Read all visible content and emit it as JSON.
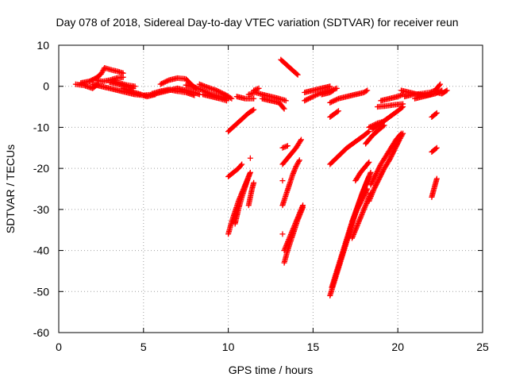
{
  "chart_data": {
    "type": "scatter",
    "title": "Day 078 of 2018, Sidereal Day-to-day VTEC variation (SDTVAR) for receiver reun",
    "xlabel": "GPS time / hours",
    "ylabel": "SDTVAR / TECUs",
    "xlim": [
      0,
      25
    ],
    "ylim": [
      -60,
      10
    ],
    "xticks": [
      0,
      5,
      10,
      15,
      20,
      25
    ],
    "yticks": [
      -60,
      -50,
      -40,
      -30,
      -20,
      -10,
      0,
      10
    ],
    "grid": true,
    "legend": "none",
    "marker": "plus",
    "color": "#ff0000",
    "segments": [
      [
        [
          1.0,
          0.5
        ],
        [
          1.5,
          0.2
        ],
        [
          2.0,
          -0.5
        ],
        [
          2.3,
          0.5
        ]
      ],
      [
        [
          1.3,
          0.8
        ],
        [
          1.8,
          1.2
        ],
        [
          2.2,
          2.0
        ],
        [
          2.5,
          3.0
        ],
        [
          2.7,
          4.5
        ],
        [
          3.1,
          4.0
        ],
        [
          3.5,
          3.6
        ],
        [
          3.8,
          3.2
        ]
      ],
      [
        [
          2.2,
          1.5
        ],
        [
          2.6,
          1.2
        ],
        [
          3.0,
          1.5
        ],
        [
          3.4,
          2.0
        ],
        [
          3.8,
          2.2
        ]
      ],
      [
        [
          2.0,
          0.5
        ],
        [
          2.5,
          0.0
        ],
        [
          3.0,
          -0.5
        ],
        [
          3.5,
          -1.0
        ],
        [
          4.0,
          -1.5
        ],
        [
          4.5,
          -2.0
        ],
        [
          5.0,
          -2.2
        ],
        [
          5.5,
          -2.0
        ],
        [
          6.0,
          -1.5
        ],
        [
          6.5,
          -1.0
        ],
        [
          7.0,
          -0.5
        ],
        [
          7.5,
          -1.0
        ],
        [
          8.0,
          -1.5
        ],
        [
          8.3,
          -2.0
        ]
      ],
      [
        [
          3.0,
          1.0
        ],
        [
          3.5,
          0.5
        ],
        [
          4.0,
          0.0
        ],
        [
          4.4,
          -0.5
        ]
      ],
      [
        [
          3.2,
          1.2
        ],
        [
          3.6,
          0.8
        ],
        [
          4.0,
          0.3
        ],
        [
          4.5,
          0.0
        ]
      ],
      [
        [
          3.8,
          -0.5
        ],
        [
          4.2,
          -1.2
        ],
        [
          4.7,
          -1.8
        ],
        [
          5.2,
          -2.5
        ],
        [
          5.7,
          -2.0
        ]
      ],
      [
        [
          5.5,
          -1.8
        ],
        [
          6.0,
          -1.2
        ],
        [
          6.5,
          -0.8
        ],
        [
          7.0,
          -1.2
        ],
        [
          7.5,
          -1.5
        ],
        [
          8.0,
          -2.2
        ]
      ],
      [
        [
          6.0,
          0.5
        ],
        [
          6.5,
          1.5
        ],
        [
          7.0,
          2.0
        ],
        [
          7.5,
          1.8
        ],
        [
          7.8,
          0.5
        ],
        [
          8.1,
          -0.5
        ]
      ],
      [
        [
          7.5,
          0.3
        ],
        [
          8.0,
          -0.2
        ],
        [
          8.5,
          -1.0
        ],
        [
          9.0,
          -2.0
        ],
        [
          9.5,
          -2.5
        ],
        [
          10.0,
          -3.0
        ]
      ],
      [
        [
          8.3,
          0.5
        ],
        [
          8.8,
          -0.3
        ],
        [
          9.3,
          -1.0
        ],
        [
          9.8,
          -2.0
        ],
        [
          10.2,
          -3.0
        ]
      ],
      [
        [
          8.5,
          -2.0
        ],
        [
          9.0,
          -2.5
        ],
        [
          9.5,
          -3.0
        ],
        [
          9.9,
          -3.5
        ]
      ],
      [
        [
          10.0,
          -11.0
        ],
        [
          10.4,
          -9.5
        ],
        [
          10.8,
          -8.0
        ],
        [
          11.2,
          -6.5
        ],
        [
          11.5,
          -5.7
        ]
      ],
      [
        [
          10.0,
          -22.0
        ],
        [
          10.3,
          -21.0
        ],
        [
          10.6,
          -20.0
        ],
        [
          10.8,
          -19.0
        ]
      ],
      [
        [
          10.0,
          -36.0
        ],
        [
          10.2,
          -33.0
        ],
        [
          10.4,
          -30.5
        ],
        [
          10.6,
          -28.0
        ],
        [
          10.8,
          -26.0
        ],
        [
          11.0,
          -24.0
        ],
        [
          11.2,
          -22.0
        ],
        [
          11.3,
          -21.0
        ]
      ],
      [
        [
          10.4,
          -33.5
        ],
        [
          10.6,
          -30.0
        ],
        [
          10.8,
          -27.0
        ],
        [
          11.0,
          -24.5
        ],
        [
          11.2,
          -22.0
        ]
      ],
      [
        [
          11.2,
          -29.0
        ],
        [
          11.3,
          -27.0
        ],
        [
          11.4,
          -25.0
        ],
        [
          11.5,
          -23.5
        ]
      ],
      [
        [
          10.5,
          -2.5
        ],
        [
          11.0,
          -3.0
        ],
        [
          11.5,
          -3.0
        ]
      ],
      [
        [
          11.3,
          -17.5
        ]
      ],
      [
        [
          11.2,
          -2.0
        ],
        [
          11.6,
          -1.5
        ],
        [
          12.0,
          -2.0
        ],
        [
          12.5,
          -2.5
        ],
        [
          13.0,
          -3.0
        ],
        [
          13.4,
          -3.5
        ]
      ],
      [
        [
          11.5,
          -1.0
        ],
        [
          11.8,
          -0.5
        ]
      ],
      [
        [
          12.0,
          -3.0
        ],
        [
          12.5,
          -3.5
        ],
        [
          13.0,
          -4.0
        ],
        [
          13.3,
          -5.5
        ]
      ],
      [
        [
          13.1,
          6.5
        ],
        [
          13.5,
          5.0
        ],
        [
          13.9,
          3.5
        ],
        [
          14.1,
          2.8
        ]
      ],
      [
        [
          13.2,
          -15.0
        ],
        [
          13.5,
          -14.5
        ]
      ],
      [
        [
          13.2,
          -23.0
        ]
      ],
      [
        [
          13.2,
          -29.0
        ],
        [
          13.4,
          -26.5
        ],
        [
          13.6,
          -24.0
        ],
        [
          13.8,
          -21.5
        ],
        [
          14.0,
          -19.5
        ],
        [
          14.2,
          -18.0
        ]
      ],
      [
        [
          13.2,
          -19.0
        ],
        [
          13.6,
          -17.0
        ],
        [
          14.0,
          -15.0
        ],
        [
          14.3,
          -13.0
        ]
      ],
      [
        [
          13.2,
          -36.0
        ]
      ],
      [
        [
          13.3,
          -43.0
        ],
        [
          13.5,
          -40.0
        ],
        [
          13.7,
          -37.5
        ],
        [
          13.9,
          -35.0
        ],
        [
          14.1,
          -32.5
        ],
        [
          14.4,
          -29.5
        ]
      ],
      [
        [
          13.3,
          -40.0
        ],
        [
          13.6,
          -37.0
        ],
        [
          13.9,
          -34.0
        ],
        [
          14.2,
          -31.0
        ],
        [
          14.4,
          -29.0
        ]
      ],
      [
        [
          14.5,
          -3.5
        ],
        [
          15.0,
          -2.5
        ],
        [
          15.5,
          -1.5
        ],
        [
          16.0,
          -1.0
        ],
        [
          16.4,
          -0.5
        ]
      ],
      [
        [
          14.5,
          -1.5
        ],
        [
          15.0,
          -1.0
        ],
        [
          15.5,
          -0.5
        ],
        [
          16.0,
          0.0
        ]
      ],
      [
        [
          15.5,
          -2.0
        ],
        [
          16.0,
          -1.5
        ],
        [
          16.2,
          -1.0
        ]
      ],
      [
        [
          16.0,
          -19.0
        ],
        [
          16.5,
          -17.0
        ],
        [
          17.0,
          -15.0
        ],
        [
          17.5,
          -13.5
        ],
        [
          18.0,
          -12.0
        ],
        [
          18.3,
          -11.0
        ]
      ],
      [
        [
          16.0,
          -51.0
        ],
        [
          16.3,
          -47.0
        ],
        [
          16.6,
          -43.0
        ],
        [
          16.9,
          -39.0
        ],
        [
          17.2,
          -35.0
        ],
        [
          17.5,
          -31.0
        ],
        [
          17.8,
          -27.5
        ],
        [
          18.1,
          -24.0
        ],
        [
          18.3,
          -22.0
        ]
      ],
      [
        [
          16.1,
          -49.0
        ],
        [
          16.4,
          -45.0
        ],
        [
          16.7,
          -41.0
        ],
        [
          17.0,
          -37.0
        ],
        [
          17.3,
          -33.0
        ],
        [
          17.6,
          -29.5
        ],
        [
          17.9,
          -26.0
        ],
        [
          18.2,
          -23.0
        ],
        [
          18.4,
          -21.0
        ]
      ],
      [
        [
          16.0,
          -7.5
        ],
        [
          16.5,
          -6.0
        ]
      ],
      [
        [
          16.0,
          -4.0
        ],
        [
          16.5,
          -3.0
        ],
        [
          17.0,
          -2.5
        ],
        [
          17.5,
          -2.0
        ],
        [
          18.0,
          -1.5
        ],
        [
          18.2,
          -1.0
        ]
      ],
      [
        [
          17.3,
          -37.0
        ],
        [
          17.6,
          -34.0
        ],
        [
          17.9,
          -31.0
        ],
        [
          18.2,
          -28.0
        ],
        [
          18.4,
          -26.0
        ]
      ],
      [
        [
          17.3,
          -33.0
        ],
        [
          17.6,
          -30.0
        ],
        [
          17.9,
          -27.5
        ],
        [
          18.2,
          -25.0
        ]
      ],
      [
        [
          17.5,
          -23.0
        ],
        [
          17.8,
          -21.0
        ],
        [
          18.1,
          -19.5
        ],
        [
          18.3,
          -18.5
        ]
      ],
      [
        [
          18.1,
          -14.0
        ],
        [
          18.5,
          -12.0
        ],
        [
          18.9,
          -10.5
        ],
        [
          19.2,
          -9.5
        ]
      ],
      [
        [
          18.3,
          -10.0
        ],
        [
          18.8,
          -9.0
        ],
        [
          19.2,
          -8.5
        ]
      ],
      [
        [
          18.3,
          -28.0
        ],
        [
          18.6,
          -25.0
        ],
        [
          18.9,
          -22.5
        ],
        [
          19.2,
          -20.0
        ],
        [
          19.5,
          -18.0
        ],
        [
          19.8,
          -15.5
        ],
        [
          20.1,
          -13.0
        ],
        [
          20.3,
          -11.5
        ]
      ],
      [
        [
          18.4,
          -24.0
        ],
        [
          18.7,
          -21.5
        ],
        [
          19.0,
          -19.0
        ],
        [
          19.3,
          -17.0
        ],
        [
          19.6,
          -15.0
        ],
        [
          19.9,
          -13.0
        ],
        [
          20.2,
          -11.5
        ]
      ],
      [
        [
          18.5,
          -10.5
        ],
        [
          19.0,
          -9.0
        ],
        [
          19.5,
          -7.5
        ],
        [
          20.0,
          -6.0
        ],
        [
          20.3,
          -5.0
        ]
      ],
      [
        [
          18.8,
          -5.0
        ],
        [
          19.3,
          -4.8
        ],
        [
          19.8,
          -4.5
        ],
        [
          20.3,
          -4.3
        ]
      ],
      [
        [
          19.0,
          -3.5
        ],
        [
          19.5,
          -3.0
        ],
        [
          20.0,
          -2.5
        ],
        [
          20.3,
          -2.0
        ]
      ],
      [
        [
          20.2,
          -1.0
        ],
        [
          20.7,
          -1.5
        ],
        [
          21.2,
          -2.0
        ],
        [
          21.7,
          -2.2
        ],
        [
          22.2,
          -1.8
        ],
        [
          22.6,
          -1.0
        ]
      ],
      [
        [
          20.4,
          -2.5
        ],
        [
          20.9,
          -2.0
        ],
        [
          21.4,
          -1.8
        ],
        [
          21.9,
          -1.5
        ],
        [
          22.2,
          -1.0
        ],
        [
          22.5,
          0.5
        ]
      ],
      [
        [
          21.0,
          -3.0
        ],
        [
          21.5,
          -2.5
        ],
        [
          22.0,
          -2.0
        ]
      ],
      [
        [
          22.0,
          -7.5
        ],
        [
          22.3,
          -6.5
        ]
      ],
      [
        [
          22.0,
          -16.0
        ],
        [
          22.3,
          -15.0
        ]
      ],
      [
        [
          22.0,
          -27.0
        ],
        [
          22.1,
          -25.5
        ],
        [
          22.2,
          -24.0
        ],
        [
          22.3,
          -22.5
        ]
      ],
      [
        [
          22.3,
          -1.5
        ],
        [
          22.6,
          -1.8
        ],
        [
          22.9,
          -1.0
        ]
      ]
    ]
  }
}
